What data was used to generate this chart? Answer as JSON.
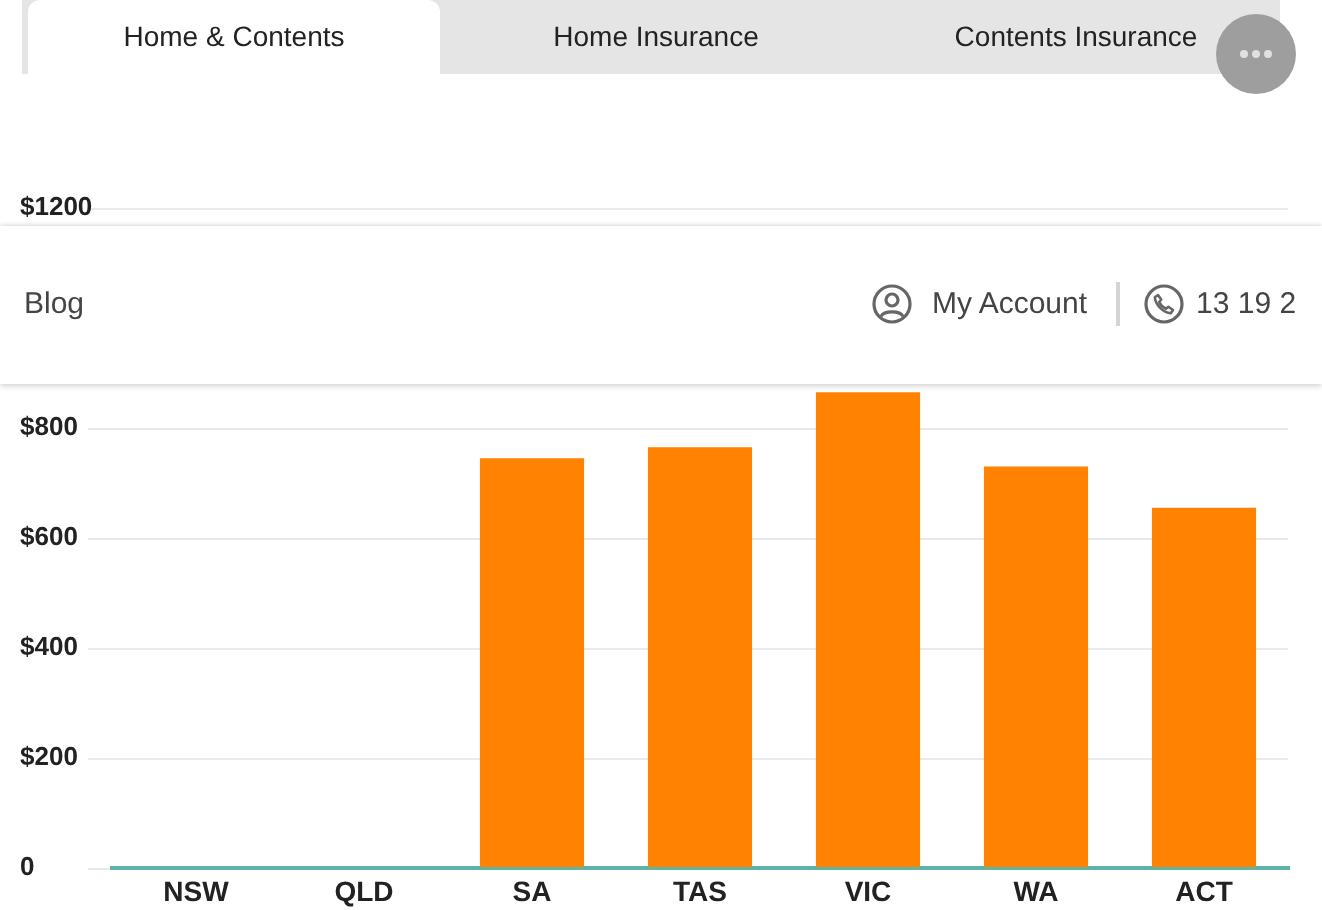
{
  "chart_data": {
    "type": "bar",
    "categories": [
      "NSW",
      "QLD",
      "SA",
      "TAS",
      "VIC",
      "WA",
      "ACT"
    ],
    "values": [
      null,
      null,
      745,
      765,
      865,
      730,
      655
    ],
    "color": "#ff8200",
    "ylim": [
      0,
      1200
    ],
    "yticks": [
      0,
      {
        "value": 200,
        "label": "$200"
      },
      {
        "value": 400,
        "label": "$400"
      },
      {
        "value": 600,
        "label": "$600"
      },
      {
        "value": 800,
        "label": "$800"
      },
      {
        "value": 1200,
        "label": "$1200"
      }
    ],
    "grid": "y",
    "annotations": [
      "Home & Contents",
      "Home Insurance",
      "Contents Insurance",
      "Blog",
      "My Account",
      "13 19 2"
    ]
  }
}
